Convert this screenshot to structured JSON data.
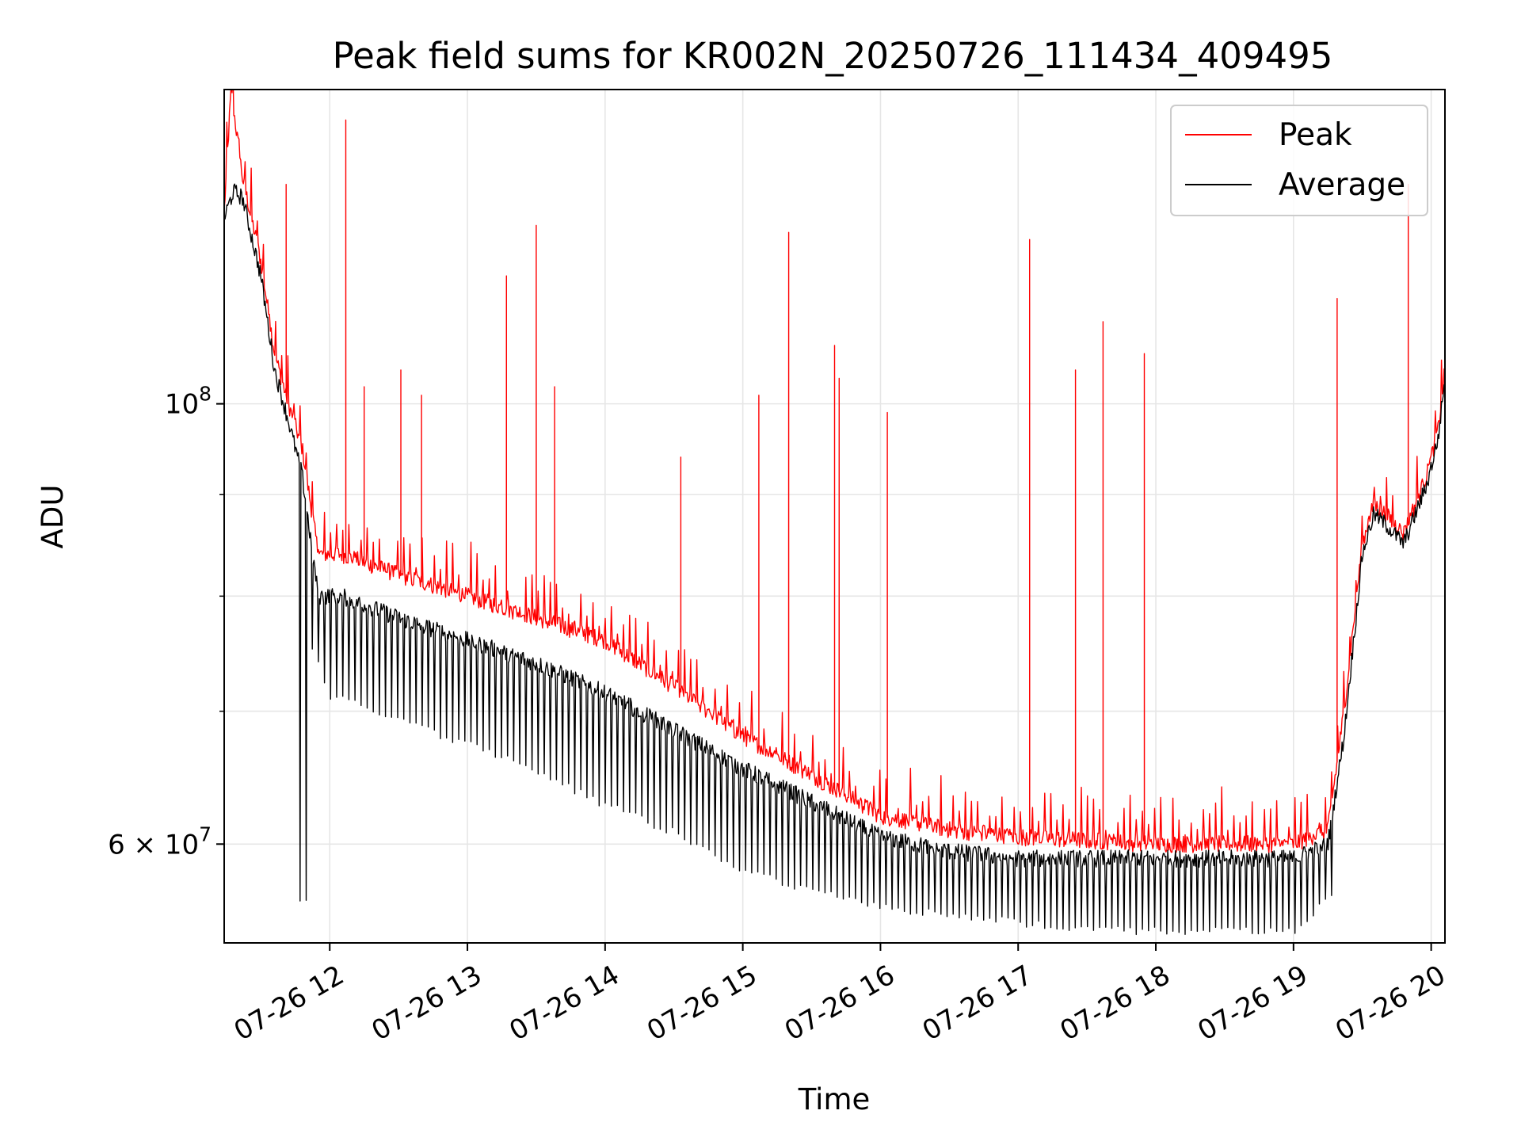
{
  "chart_data": {
    "type": "line",
    "title": "Peak field sums for KR002N_20250726_111434_409495",
    "xlabel": "Time",
    "ylabel": "ADU",
    "xlim": [
      "2025-07-26 11:14",
      "2025-07-26 20:06"
    ],
    "ylim": [
      53500000,
      144000000
    ],
    "yscale": "log",
    "grid": true,
    "legend_position": "top-right",
    "x_ticks": [
      {
        "t": "2025-07-26 12:00",
        "label": "07-26 12"
      },
      {
        "t": "2025-07-26 13:00",
        "label": "07-26 13"
      },
      {
        "t": "2025-07-26 14:00",
        "label": "07-26 14"
      },
      {
        "t": "2025-07-26 15:00",
        "label": "07-26 15"
      },
      {
        "t": "2025-07-26 16:00",
        "label": "07-26 16"
      },
      {
        "t": "2025-07-26 17:00",
        "label": "07-26 17"
      },
      {
        "t": "2025-07-26 18:00",
        "label": "07-26 18"
      },
      {
        "t": "2025-07-26 19:00",
        "label": "07-26 19"
      },
      {
        "t": "2025-07-26 20:00",
        "label": "07-26 20"
      }
    ],
    "y_ticks": [
      {
        "value": 100000000,
        "base": "10",
        "exp": "8"
      },
      {
        "value": 60000000,
        "mantissa": "6",
        "base": "10",
        "exp": "7"
      }
    ],
    "y_minor_grid": [
      60000000,
      70000000,
      80000000,
      90000000,
      100000000
    ],
    "series": [
      {
        "name": "Peak",
        "color": "#ff0000",
        "points": [
          {
            "t": "2025-07-26 11:14",
            "y": 125000000
          },
          {
            "t": "2025-07-26 11:17",
            "y": 144000000
          },
          {
            "t": "2025-07-26 11:22",
            "y": 130000000
          },
          {
            "t": "2025-07-26 11:30",
            "y": 118000000
          },
          {
            "t": "2025-07-26 11:36",
            "y": 106000000
          },
          {
            "t": "2025-07-26 11:42",
            "y": 100000000
          },
          {
            "t": "2025-07-26 11:48",
            "y": 95000000
          },
          {
            "t": "2025-07-26 11:55",
            "y": 84000000
          },
          {
            "t": "2025-07-26 12:05",
            "y": 84000000
          },
          {
            "t": "2025-07-26 12:30",
            "y": 82000000
          },
          {
            "t": "2025-07-26 13:00",
            "y": 80000000
          },
          {
            "t": "2025-07-26 13:30",
            "y": 78000000
          },
          {
            "t": "2025-07-26 14:00",
            "y": 76000000
          },
          {
            "t": "2025-07-26 14:30",
            "y": 72000000
          },
          {
            "t": "2025-07-26 15:00",
            "y": 68000000
          },
          {
            "t": "2025-07-26 15:30",
            "y": 65000000
          },
          {
            "t": "2025-07-26 16:00",
            "y": 62000000
          },
          {
            "t": "2025-07-26 16:30",
            "y": 61000000
          },
          {
            "t": "2025-07-26 17:00",
            "y": 60500000
          },
          {
            "t": "2025-07-26 18:00",
            "y": 60000000
          },
          {
            "t": "2025-07-26 19:00",
            "y": 60000000
          },
          {
            "t": "2025-07-26 19:15",
            "y": 61000000
          },
          {
            "t": "2025-07-26 19:22",
            "y": 70000000
          },
          {
            "t": "2025-07-26 19:30",
            "y": 85000000
          },
          {
            "t": "2025-07-26 19:35",
            "y": 89000000
          },
          {
            "t": "2025-07-26 19:40",
            "y": 88000000
          },
          {
            "t": "2025-07-26 19:48",
            "y": 86000000
          },
          {
            "t": "2025-07-26 19:58",
            "y": 92000000
          },
          {
            "t": "2025-07-26 20:03",
            "y": 97000000
          },
          {
            "t": "2025-07-26 20:06",
            "y": 104000000
          }
        ],
        "spikes": [
          {
            "t": "2025-07-26 11:41",
            "y": 129000000
          },
          {
            "t": "2025-07-26 12:07",
            "y": 139000000
          },
          {
            "t": "2025-07-26 12:15",
            "y": 102000000
          },
          {
            "t": "2025-07-26 12:31",
            "y": 104000000
          },
          {
            "t": "2025-07-26 12:40",
            "y": 101000000
          },
          {
            "t": "2025-07-26 13:17",
            "y": 116000000
          },
          {
            "t": "2025-07-26 13:30",
            "y": 123000000
          },
          {
            "t": "2025-07-26 13:38",
            "y": 102000000
          },
          {
            "t": "2025-07-26 14:33",
            "y": 94000000
          },
          {
            "t": "2025-07-26 15:07",
            "y": 101000000
          },
          {
            "t": "2025-07-26 15:20",
            "y": 122000000
          },
          {
            "t": "2025-07-26 15:40",
            "y": 107000000
          },
          {
            "t": "2025-07-26 15:42",
            "y": 103000000
          },
          {
            "t": "2025-07-26 16:03",
            "y": 99000000
          },
          {
            "t": "2025-07-26 17:05",
            "y": 121000000
          },
          {
            "t": "2025-07-26 17:25",
            "y": 104000000
          },
          {
            "t": "2025-07-26 17:37",
            "y": 110000000
          },
          {
            "t": "2025-07-26 17:55",
            "y": 106000000
          },
          {
            "t": "2025-07-26 19:19",
            "y": 113000000
          },
          {
            "t": "2025-07-26 19:50",
            "y": 129000000
          }
        ]
      },
      {
        "name": "Average",
        "color": "#000000",
        "points": [
          {
            "t": "2025-07-26 11:14",
            "y": 124000000
          },
          {
            "t": "2025-07-26 11:18",
            "y": 128000000
          },
          {
            "t": "2025-07-26 11:22",
            "y": 127000000
          },
          {
            "t": "2025-07-26 11:30",
            "y": 116000000
          },
          {
            "t": "2025-07-26 11:36",
            "y": 104000000
          },
          {
            "t": "2025-07-26 11:42",
            "y": 98000000
          },
          {
            "t": "2025-07-26 11:48",
            "y": 92000000
          },
          {
            "t": "2025-07-26 11:55",
            "y": 80000000
          },
          {
            "t": "2025-07-26 12:05",
            "y": 80000000
          },
          {
            "t": "2025-07-26 12:30",
            "y": 78000000
          },
          {
            "t": "2025-07-26 13:00",
            "y": 76000000
          },
          {
            "t": "2025-07-26 13:30",
            "y": 74000000
          },
          {
            "t": "2025-07-26 14:00",
            "y": 71500000
          },
          {
            "t": "2025-07-26 14:30",
            "y": 68500000
          },
          {
            "t": "2025-07-26 15:00",
            "y": 65500000
          },
          {
            "t": "2025-07-26 15:30",
            "y": 63000000
          },
          {
            "t": "2025-07-26 16:00",
            "y": 60500000
          },
          {
            "t": "2025-07-26 16:30",
            "y": 59500000
          },
          {
            "t": "2025-07-26 17:00",
            "y": 59000000
          },
          {
            "t": "2025-07-26 18:00",
            "y": 59000000
          },
          {
            "t": "2025-07-26 19:00",
            "y": 59000000
          },
          {
            "t": "2025-07-26 19:15",
            "y": 60000000
          },
          {
            "t": "2025-07-26 19:22",
            "y": 68000000
          },
          {
            "t": "2025-07-26 19:30",
            "y": 84000000
          },
          {
            "t": "2025-07-26 19:35",
            "y": 88000000
          },
          {
            "t": "2025-07-26 19:40",
            "y": 87000000
          },
          {
            "t": "2025-07-26 19:48",
            "y": 85000000
          },
          {
            "t": "2025-07-26 19:58",
            "y": 91000000
          },
          {
            "t": "2025-07-26 20:03",
            "y": 96000000
          },
          {
            "t": "2025-07-26 20:06",
            "y": 103000000
          }
        ],
        "dips": [
          {
            "t": "2025-07-26 11:50",
            "y": 76000000
          },
          {
            "t": "2025-07-26 12:00",
            "y": 71000000
          },
          {
            "t": "2025-07-26 12:30",
            "y": 69000000
          },
          {
            "t": "2025-07-26 13:00",
            "y": 67000000
          },
          {
            "t": "2025-07-26 13:30",
            "y": 65000000
          },
          {
            "t": "2025-07-26 14:00",
            "y": 62500000
          },
          {
            "t": "2025-07-26 14:30",
            "y": 60500000
          },
          {
            "t": "2025-07-26 15:00",
            "y": 58000000
          },
          {
            "t": "2025-07-26 15:30",
            "y": 56500000
          },
          {
            "t": "2025-07-26 16:00",
            "y": 55500000
          },
          {
            "t": "2025-07-26 16:30",
            "y": 55000000
          },
          {
            "t": "2025-07-26 17:00",
            "y": 54500000
          },
          {
            "t": "2025-07-26 17:30",
            "y": 54000000
          },
          {
            "t": "2025-07-26 18:00",
            "y": 54000000
          },
          {
            "t": "2025-07-26 18:30",
            "y": 54000000
          },
          {
            "t": "2025-07-26 19:00",
            "y": 54000000
          },
          {
            "t": "2025-07-26 19:15",
            "y": 56000000
          }
        ]
      }
    ]
  }
}
